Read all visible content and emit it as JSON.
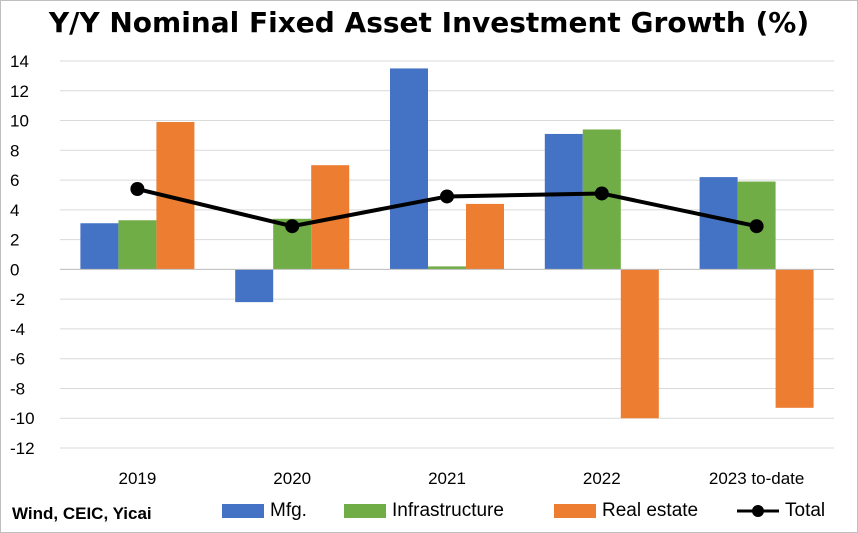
{
  "chart_data": {
    "type": "bar",
    "title": "Y/Y Nominal Fixed Asset Investment Growth (%)",
    "categories": [
      "2019",
      "2020",
      "2021",
      "2022",
      "2023 to-date"
    ],
    "series": [
      {
        "name": "Mfg.",
        "type": "bar",
        "color": "#4472c4",
        "values": [
          3.1,
          -2.2,
          13.5,
          9.1,
          6.2
        ]
      },
      {
        "name": "Infrastructure",
        "type": "bar",
        "color": "#70ad47",
        "values": [
          3.3,
          3.4,
          0.2,
          9.4,
          5.9
        ]
      },
      {
        "name": "Real estate",
        "type": "bar",
        "color": "#ed7d31",
        "values": [
          9.9,
          7.0,
          4.4,
          -10.0,
          -9.3
        ]
      },
      {
        "name": "Total",
        "type": "line",
        "color": "#000000",
        "values": [
          5.4,
          2.9,
          4.9,
          5.1,
          2.9
        ]
      }
    ],
    "ylim": [
      -12,
      14
    ],
    "yticks": [
      "14",
      "12",
      "10",
      "8",
      "6",
      "4",
      "2",
      "0",
      "-2",
      "-4",
      "-6",
      "-8",
      "-10",
      "-12"
    ],
    "grid": true,
    "legend_position": "bottom"
  },
  "source": "Wind, CEIC,  Yicai"
}
